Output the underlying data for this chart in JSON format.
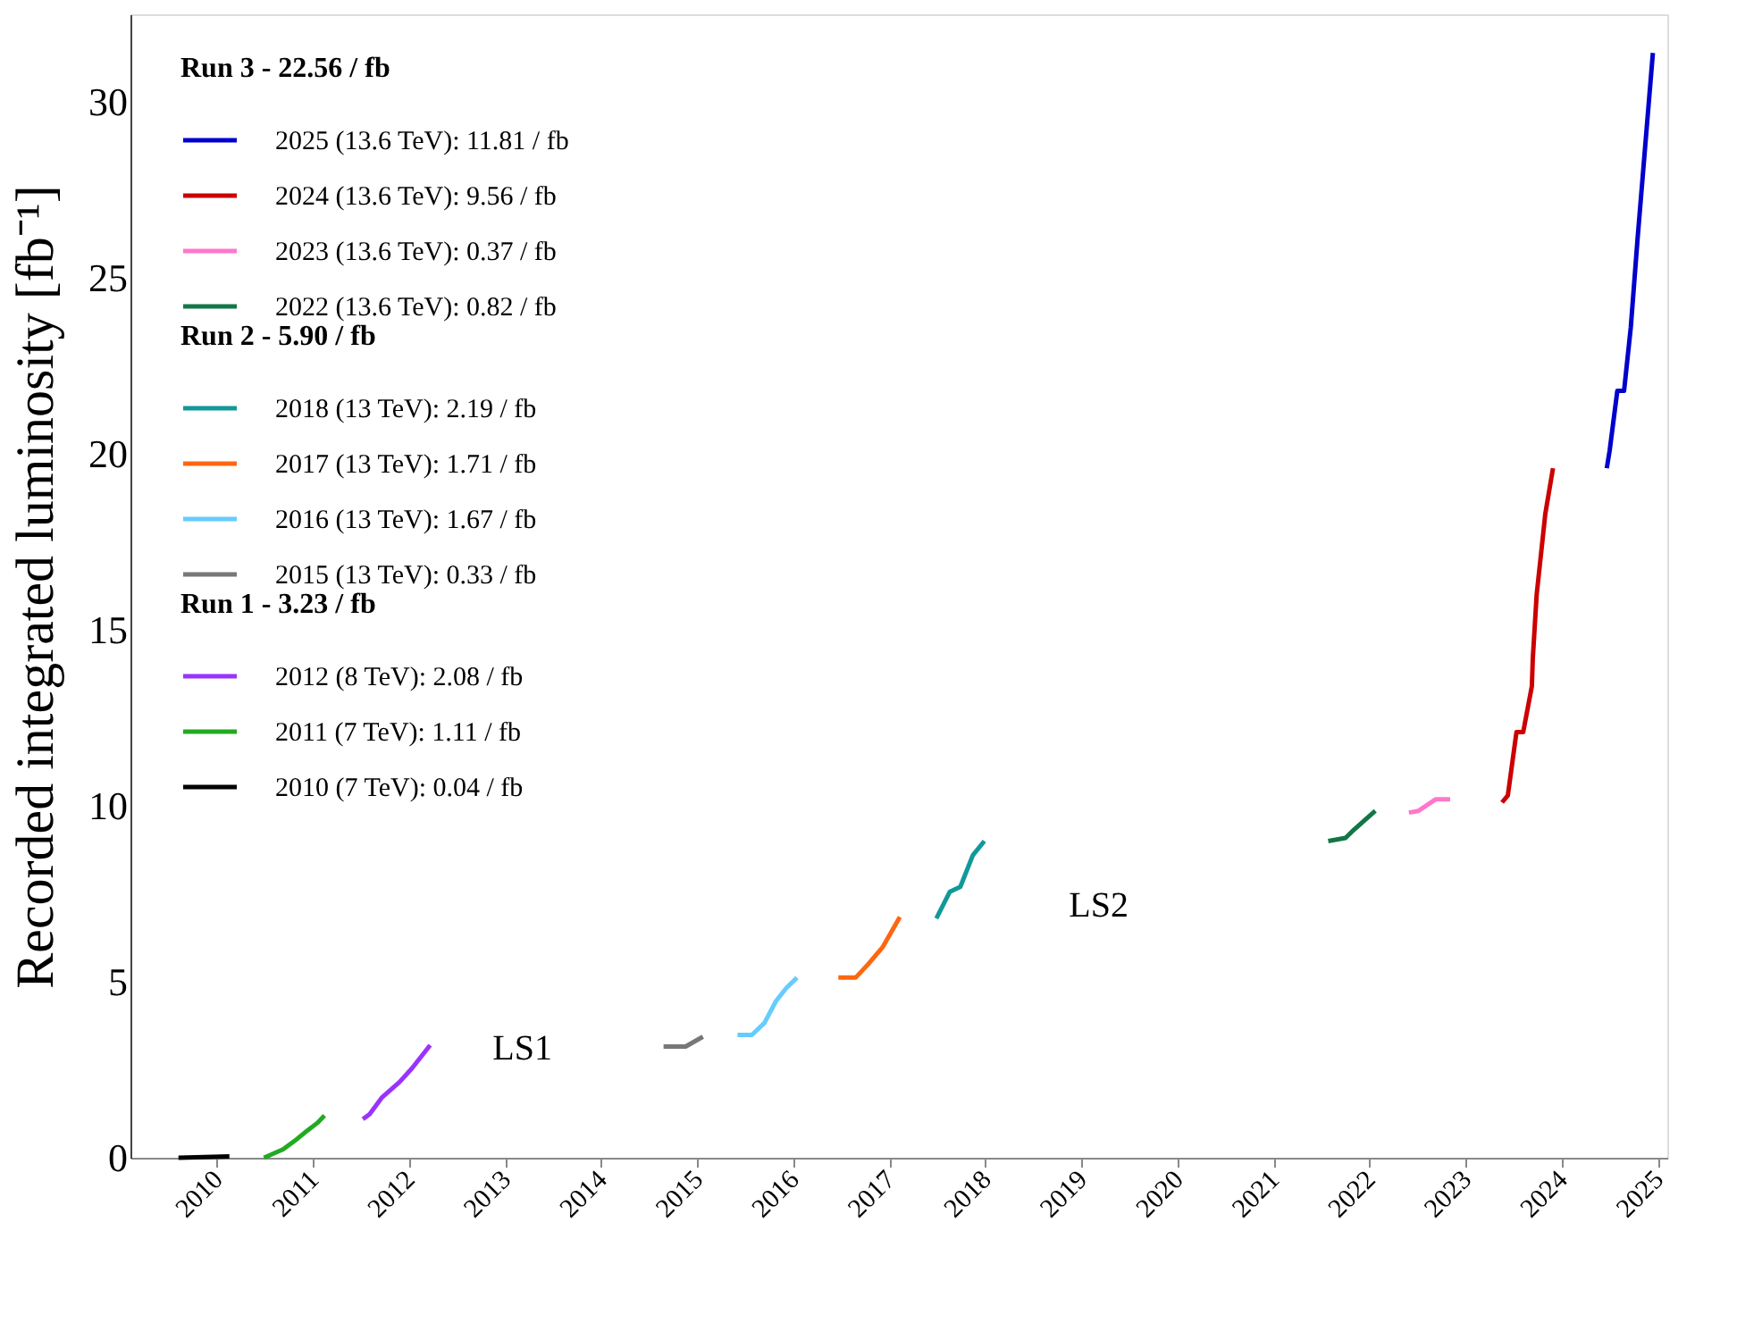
{
  "chart_data": {
    "type": "line",
    "ylabel": "Recorded integrated luminosity [fb⁻¹]",
    "xlim": [
      2009.1,
      2025.1
    ],
    "ylim": [
      0,
      32.5
    ],
    "xticks": [
      2010,
      2011,
      2012,
      2013,
      2014,
      2015,
      2016,
      2017,
      2018,
      2019,
      2020,
      2021,
      2022,
      2023,
      2024,
      2025
    ],
    "yticks": [
      0,
      5,
      10,
      15,
      20,
      25,
      30
    ],
    "grid": false,
    "legend": "top left",
    "marker": "none",
    "line_style": "solid",
    "annotations": [
      "Run 3 - 22.56 / fb",
      "Run 2 - 5.90 / fb",
      "Run 1 - 3.23 / fb",
      "LS1",
      "LS2"
    ],
    "series": [
      {
        "name": "2025 (13.6 TeV):  11.81 / fb",
        "color": "#0000cc",
        "x": [
          2024.47,
          2024.5,
          2024.58,
          2024.65,
          2024.72,
          2024.79,
          2024.95
        ],
        "values": [
          19.6,
          20.1,
          21.8,
          21.8,
          23.6,
          26.1,
          31.4
        ]
      },
      {
        "name": "2024 (13.6 TeV):  9.56 / fb",
        "color": "#cc0000",
        "x": [
          2023.38,
          2023.44,
          2023.53,
          2023.6,
          2023.69,
          2023.7,
          2023.74,
          2023.83,
          2023.91
        ],
        "values": [
          10.1,
          10.3,
          12.1,
          12.1,
          13.4,
          14.2,
          16.0,
          18.3,
          19.6
        ]
      },
      {
        "name": "2023 (13.6 TeV):  0.37 / fb",
        "color": "#ff77cc",
        "x": [
          2022.41,
          2022.51,
          2022.69,
          2022.84
        ],
        "values": [
          9.81,
          9.86,
          10.19,
          10.19
        ]
      },
      {
        "name": "2022 (13.6 TeV):  0.82 / fb",
        "color": "#117744",
        "x": [
          2021.57,
          2021.75,
          2021.84,
          2022.06
        ],
        "values": [
          9.0,
          9.09,
          9.33,
          9.86
        ]
      },
      {
        "name": "2018 (13 TeV):  2.19 / fb",
        "color": "#119999",
        "x": [
          2017.49,
          2017.63,
          2017.74,
          2017.87,
          2017.99
        ],
        "values": [
          6.8,
          7.56,
          7.7,
          8.6,
          9.0
        ]
      },
      {
        "name": "2017 (13 TeV):  1.71 / fb",
        "color": "#ff6611",
        "x": [
          2016.47,
          2016.65,
          2016.78,
          2016.93,
          2017.11
        ],
        "values": [
          5.12,
          5.12,
          5.5,
          5.98,
          6.84
        ]
      },
      {
        "name": "2016 (13 TeV):  1.67 / fb",
        "color": "#66ccff",
        "x": [
          2015.42,
          2015.57,
          2015.7,
          2015.82,
          2015.93,
          2016.04
        ],
        "values": [
          3.49,
          3.49,
          3.83,
          4.45,
          4.83,
          5.12
        ]
      },
      {
        "name": "2015 (13 TeV):  0.33 / fb",
        "color": "#777777",
        "x": [
          2014.65,
          2014.88,
          2015.06
        ],
        "values": [
          3.16,
          3.16,
          3.44
        ]
      },
      {
        "name": "2012 (8 TeV):   2.08 / fb",
        "color": "#9933ff",
        "x": [
          2011.52,
          2011.59,
          2011.72,
          2011.9,
          2012.03,
          2012.22
        ],
        "values": [
          1.1,
          1.24,
          1.72,
          2.15,
          2.54,
          3.2
        ]
      },
      {
        "name": "2011 (7 TeV):   1.11 / fb",
        "color": "#22aa22",
        "x": [
          2010.49,
          2010.69,
          2010.81,
          2010.94,
          2011.05,
          2011.12
        ],
        "values": [
          0.0,
          0.24,
          0.48,
          0.77,
          1.0,
          1.2
        ]
      },
      {
        "name": "2010 (7 TeV):   0.04 / fb",
        "color": "#000000",
        "x": [
          2009.6,
          2010.13
        ],
        "values": [
          0.0,
          0.04
        ]
      }
    ]
  }
}
